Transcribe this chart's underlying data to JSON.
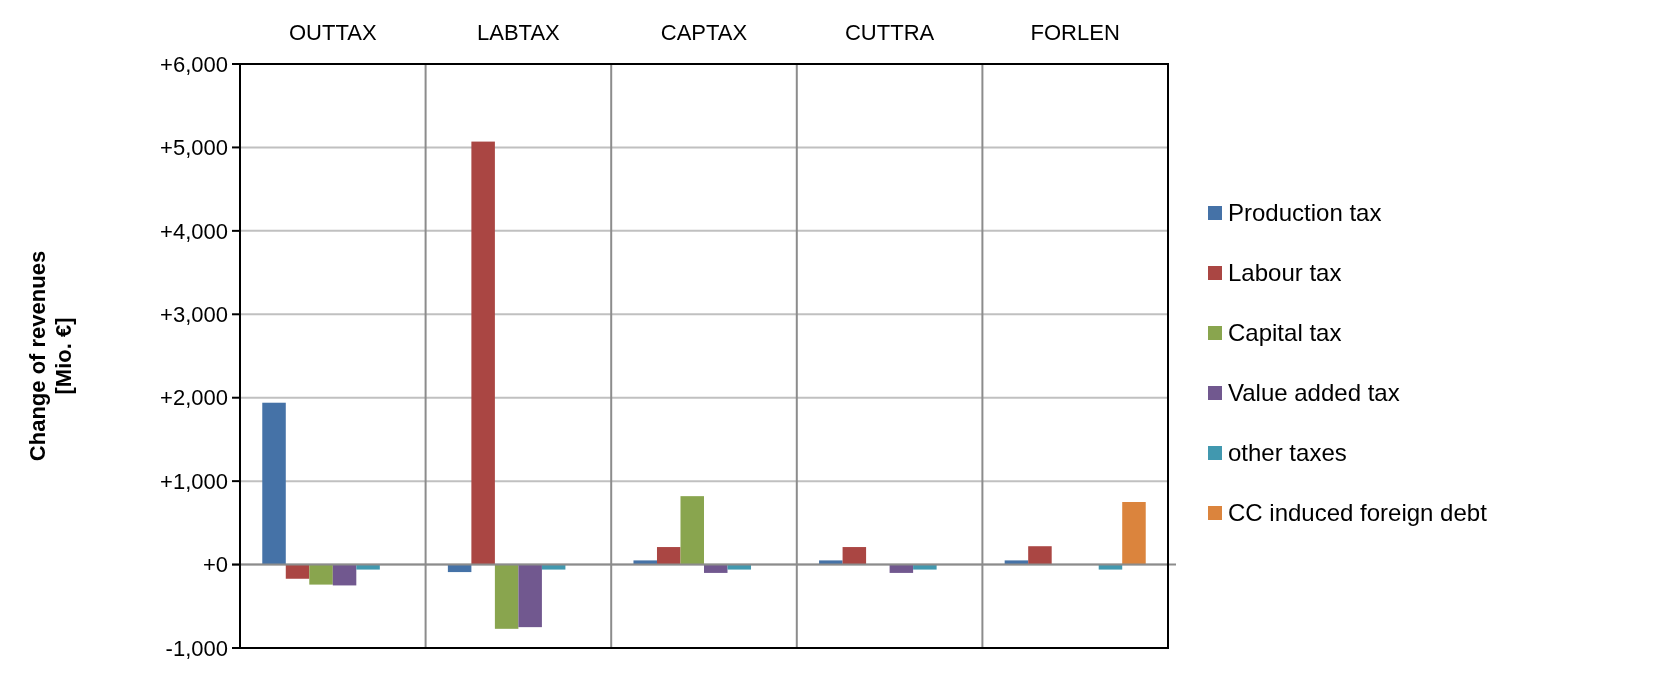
{
  "chart_data": {
    "type": "bar",
    "ylabel": "Change of revenues\n[Mio. €]",
    "categories": [
      "OUTTAX",
      "LABTAX",
      "CAPTAX",
      "CUTTRA",
      "FORLEN"
    ],
    "series": [
      {
        "name": "Production tax",
        "color": "#4572a7",
        "values": [
          1940,
          -90,
          50,
          50,
          50
        ]
      },
      {
        "name": "Labour tax",
        "color": "#aa4643",
        "values": [
          -170,
          5070,
          210,
          210,
          220
        ]
      },
      {
        "name": "Capital tax",
        "color": "#89a54e",
        "values": [
          -240,
          -770,
          820,
          null,
          null
        ]
      },
      {
        "name": "Value added tax",
        "color": "#71588f",
        "values": [
          -250,
          -750,
          -100,
          -100,
          null
        ]
      },
      {
        "name": "other taxes",
        "color": "#4198af",
        "values": [
          -60,
          -60,
          -60,
          -60,
          -60
        ]
      },
      {
        "name": "CC induced foreign debt",
        "color": "#db843d",
        "values": [
          null,
          null,
          null,
          null,
          750
        ]
      }
    ],
    "ylim": [
      -1000,
      6000
    ],
    "yticks": [
      {
        "value": -1000,
        "label": "-1,000"
      },
      {
        "value": 0,
        "label": "+0"
      },
      {
        "value": 1000,
        "label": "+1,000"
      },
      {
        "value": 2000,
        "label": "+2,000"
      },
      {
        "value": 3000,
        "label": "+3,000"
      },
      {
        "value": 4000,
        "label": "+4,000"
      },
      {
        "value": 5000,
        "label": "+5,000"
      },
      {
        "value": 6000,
        "label": "+6,000"
      }
    ],
    "grid": true,
    "legend": "right"
  }
}
